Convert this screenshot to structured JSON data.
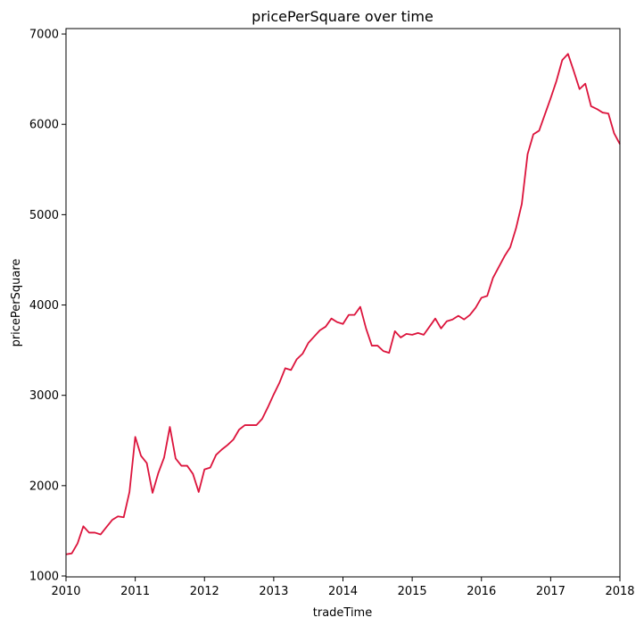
{
  "chart_data": {
    "type": "line",
    "title": "pricePerSquare over time",
    "xlabel": "tradeTime",
    "ylabel": "pricePerSquare",
    "xlim": [
      "2010-01",
      "2018-01"
    ],
    "ylim": [
      990,
      7060
    ],
    "x_tick_labels": [
      "2010",
      "2011",
      "2012",
      "2013",
      "2014",
      "2015",
      "2016",
      "2017",
      "2018"
    ],
    "y_tick_labels": [
      "1000",
      "2000",
      "3000",
      "4000",
      "5000",
      "6000",
      "7000"
    ],
    "grid": false,
    "legend": "none",
    "line_color": "#dc143c",
    "series": [
      {
        "x": [
          "2010-01",
          "2010-02",
          "2010-03",
          "2010-04",
          "2010-05",
          "2010-06",
          "2010-07",
          "2010-08",
          "2010-09",
          "2010-10",
          "2010-11",
          "2010-12",
          "2011-01",
          "2011-02",
          "2011-03",
          "2011-04",
          "2011-05",
          "2011-06",
          "2011-07",
          "2011-08",
          "2011-09",
          "2011-10",
          "2011-11",
          "2011-12",
          "2012-01",
          "2012-02",
          "2012-03",
          "2012-04",
          "2012-05",
          "2012-06",
          "2012-07",
          "2012-08",
          "2012-09",
          "2012-10",
          "2012-11",
          "2012-12",
          "2013-01",
          "2013-02",
          "2013-03",
          "2013-04",
          "2013-05",
          "2013-06",
          "2013-07",
          "2013-08",
          "2013-09",
          "2013-10",
          "2013-11",
          "2013-12",
          "2014-01",
          "2014-02",
          "2014-03",
          "2014-04",
          "2014-05",
          "2014-06",
          "2014-07",
          "2014-08",
          "2014-09",
          "2014-10",
          "2014-11",
          "2014-12",
          "2015-01",
          "2015-02",
          "2015-03",
          "2015-04",
          "2015-05",
          "2015-06",
          "2015-07",
          "2015-08",
          "2015-09",
          "2015-10",
          "2015-11",
          "2015-12",
          "2016-01",
          "2016-02",
          "2016-03",
          "2016-04",
          "2016-05",
          "2016-06",
          "2016-07",
          "2016-08",
          "2016-09",
          "2016-10",
          "2016-11",
          "2016-12",
          "2017-01",
          "2017-02",
          "2017-03",
          "2017-04",
          "2017-05",
          "2017-06",
          "2017-07",
          "2017-08",
          "2017-09",
          "2017-10",
          "2017-11",
          "2017-12",
          "2018-01"
        ],
        "y": [
          1240,
          1250,
          1360,
          1550,
          1480,
          1480,
          1460,
          1540,
          1620,
          1660,
          1650,
          1930,
          2540,
          2330,
          2250,
          1920,
          2140,
          2310,
          2650,
          2300,
          2220,
          2220,
          2130,
          1930,
          2180,
          2200,
          2340,
          2400,
          2450,
          2510,
          2620,
          2670,
          2670,
          2670,
          2740,
          2870,
          3010,
          3140,
          3300,
          3280,
          3400,
          3460,
          3580,
          3650,
          3720,
          3760,
          3850,
          3810,
          3790,
          3890,
          3890,
          3980,
          3740,
          3550,
          3550,
          3490,
          3470,
          3710,
          3640,
          3680,
          3670,
          3690,
          3670,
          3760,
          3850,
          3740,
          3820,
          3840,
          3880,
          3840,
          3890,
          3970,
          4080,
          4100,
          4300,
          4420,
          4540,
          4640,
          4850,
          5120,
          5670,
          5890,
          5930,
          6110,
          6290,
          6480,
          6710,
          6780,
          6590,
          6390,
          6450,
          6200,
          6170,
          6130,
          6120,
          5900,
          5780
        ]
      }
    ]
  }
}
